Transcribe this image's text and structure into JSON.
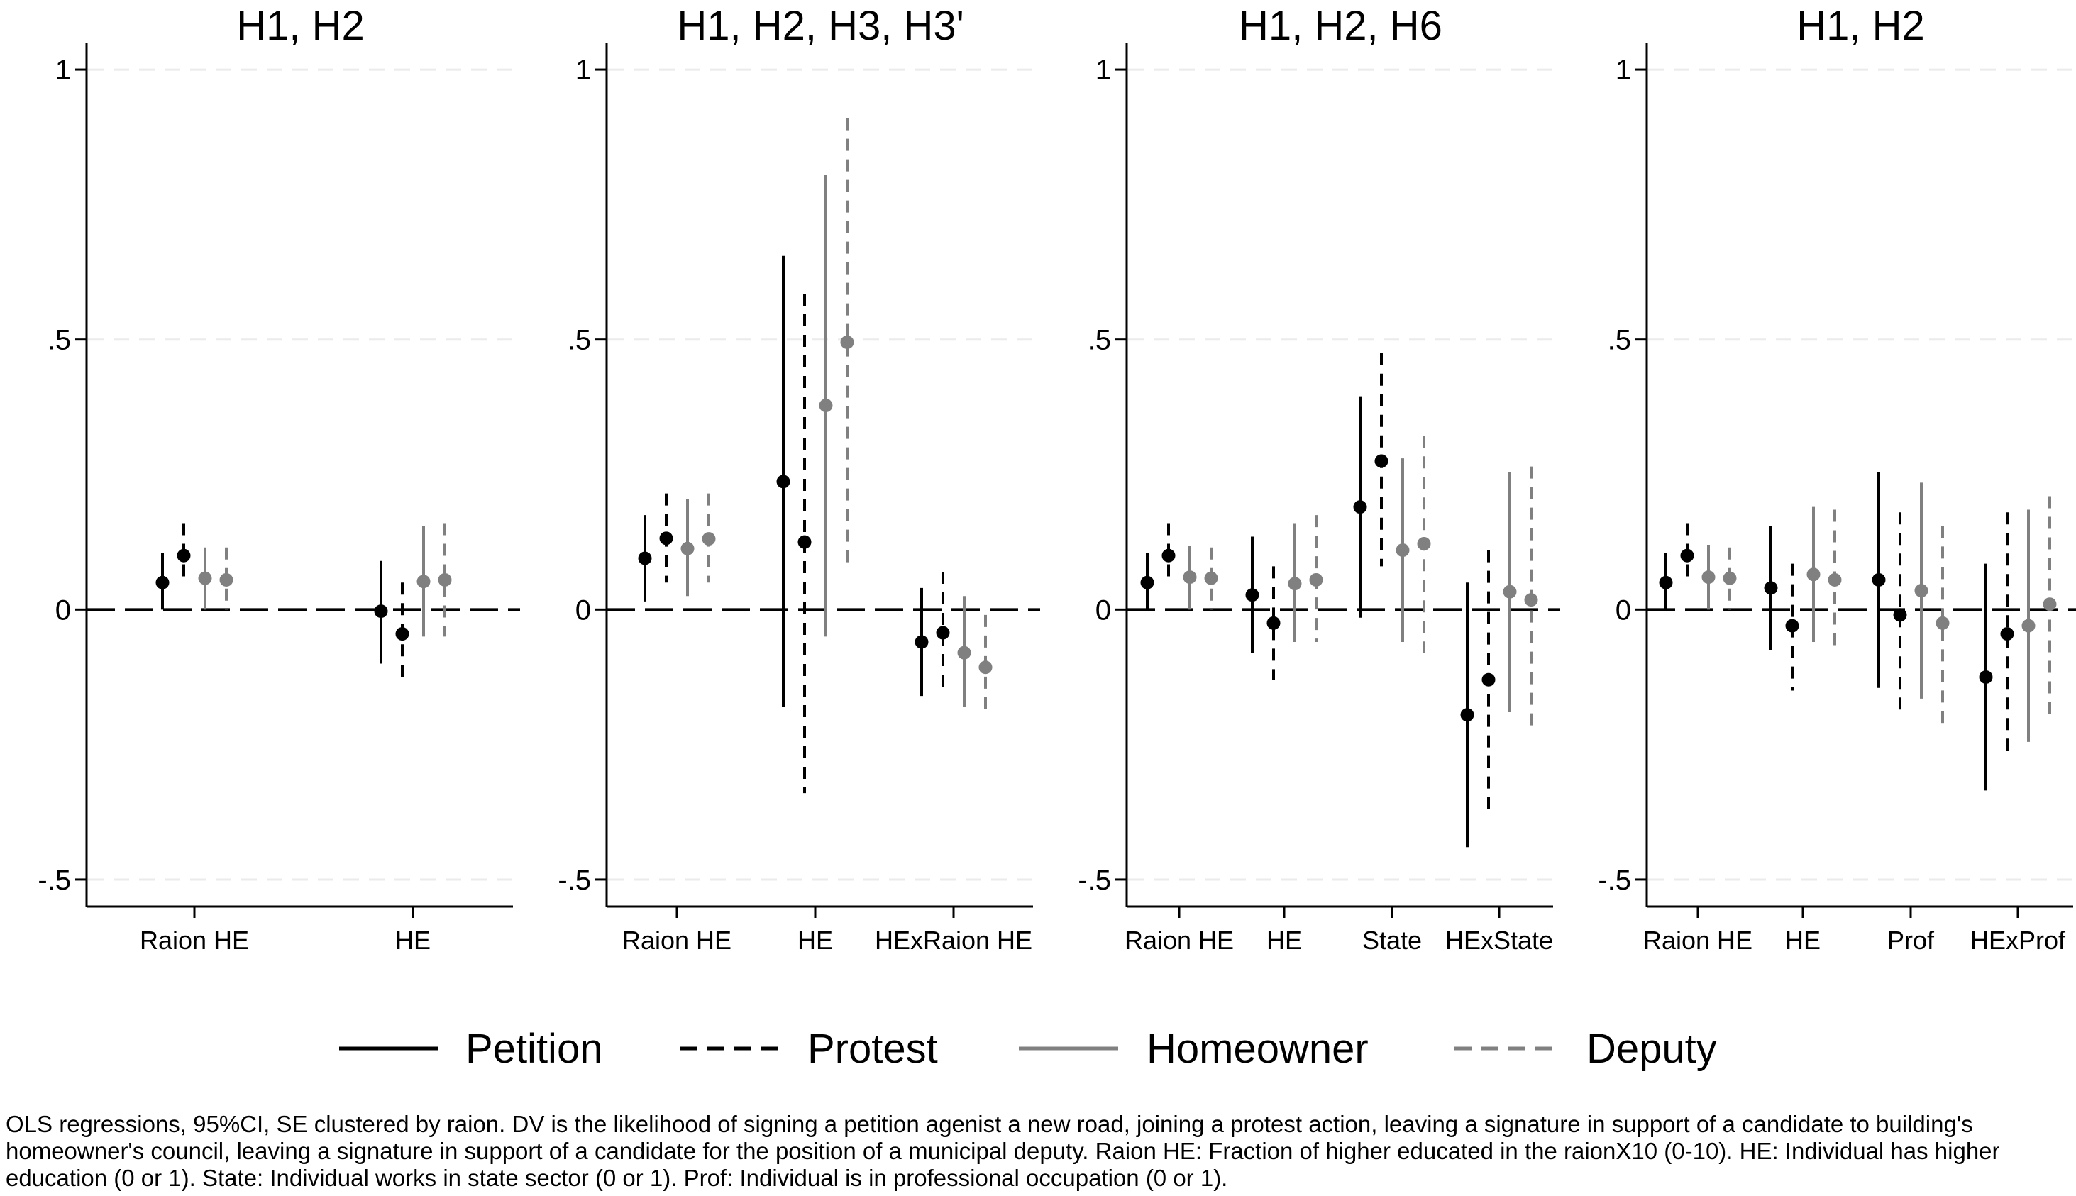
{
  "chart_data": [
    {
      "type": "coefficient-plot",
      "title": "H1, H2",
      "ylim": [
        -0.55,
        1.05
      ],
      "yticks": [
        {
          "value": 1,
          "label": "1"
        },
        {
          "value": 0.5,
          "label": ".5"
        },
        {
          "value": 0,
          "label": "0"
        },
        {
          "value": -0.5,
          "label": "-.5"
        }
      ],
      "categories": [
        "Raion HE",
        "HE"
      ],
      "series": [
        {
          "name": "Petition",
          "estimates": [
            0.05,
            -0.003
          ],
          "ci_low": [
            0.0,
            -0.1
          ],
          "ci_high": [
            0.105,
            0.09
          ]
        },
        {
          "name": "Protest",
          "estimates": [
            0.1,
            -0.045
          ],
          "ci_low": [
            0.045,
            -0.14
          ],
          "ci_high": [
            0.16,
            0.05
          ]
        },
        {
          "name": "Homeowner",
          "estimates": [
            0.058,
            0.052
          ],
          "ci_low": [
            0.0,
            -0.05
          ],
          "ci_high": [
            0.115,
            0.155
          ]
        },
        {
          "name": "Deputy",
          "estimates": [
            0.055,
            0.055
          ],
          "ci_low": [
            0.0,
            -0.05
          ],
          "ci_high": [
            0.115,
            0.16
          ]
        }
      ]
    },
    {
      "type": "coefficient-plot",
      "title": "H1, H2, H3, H3'",
      "ylim": [
        -0.55,
        1.05
      ],
      "yticks": [
        {
          "value": 1,
          "label": "1"
        },
        {
          "value": 0.5,
          "label": ".5"
        },
        {
          "value": 0,
          "label": "0"
        },
        {
          "value": -0.5,
          "label": "-.5"
        }
      ],
      "categories": [
        "Raion HE",
        "HE",
        "HExRaion HE"
      ],
      "series": [
        {
          "name": "Petition",
          "estimates": [
            0.095,
            0.237,
            -0.06
          ],
          "ci_low": [
            0.015,
            -0.18,
            -0.16
          ],
          "ci_high": [
            0.175,
            0.655,
            0.04
          ]
        },
        {
          "name": "Protest",
          "estimates": [
            0.132,
            0.125,
            -0.043
          ],
          "ci_low": [
            0.05,
            -0.34,
            -0.15
          ],
          "ci_high": [
            0.215,
            0.585,
            0.07
          ]
        },
        {
          "name": "Homeowner",
          "estimates": [
            0.113,
            0.378,
            -0.08
          ],
          "ci_low": [
            0.025,
            -0.05,
            -0.18
          ],
          "ci_high": [
            0.205,
            0.805,
            0.025
          ]
        },
        {
          "name": "Deputy",
          "estimates": [
            0.131,
            0.495,
            -0.107
          ],
          "ci_low": [
            0.05,
            0.075,
            -0.2
          ],
          "ci_high": [
            0.215,
            0.91,
            -0.01
          ]
        }
      ]
    },
    {
      "type": "coefficient-plot",
      "title": "H1, H2, H6",
      "ylim": [
        -0.55,
        1.05
      ],
      "yticks": [
        {
          "value": 1,
          "label": "1"
        },
        {
          "value": 0.5,
          "label": ".5"
        },
        {
          "value": 0,
          "label": "0"
        },
        {
          "value": -0.5,
          "label": "-.5"
        }
      ],
      "categories": [
        "Raion HE",
        "HE",
        "State",
        "HExState"
      ],
      "series": [
        {
          "name": "Petition",
          "estimates": [
            0.05,
            0.027,
            0.19,
            -0.195
          ],
          "ci_low": [
            0.0,
            -0.08,
            -0.015,
            -0.44
          ],
          "ci_high": [
            0.105,
            0.135,
            0.395,
            0.05
          ]
        },
        {
          "name": "Protest",
          "estimates": [
            0.1,
            -0.025,
            0.275,
            -0.13
          ],
          "ci_low": [
            0.045,
            -0.13,
            0.08,
            -0.37
          ],
          "ci_high": [
            0.16,
            0.08,
            0.475,
            0.11
          ]
        },
        {
          "name": "Homeowner",
          "estimates": [
            0.06,
            0.048,
            0.11,
            0.033
          ],
          "ci_low": [
            0.0,
            -0.06,
            -0.06,
            -0.19
          ],
          "ci_high": [
            0.118,
            0.16,
            0.28,
            0.255
          ]
        },
        {
          "name": "Deputy",
          "estimates": [
            0.058,
            0.055,
            0.122,
            0.018
          ],
          "ci_low": [
            0.0,
            -0.06,
            -0.08,
            -0.23
          ],
          "ci_high": [
            0.115,
            0.175,
            0.322,
            0.265
          ]
        }
      ]
    },
    {
      "type": "coefficient-plot",
      "title": "H1, H2",
      "ylim": [
        -0.55,
        1.05
      ],
      "yticks": [
        {
          "value": 1,
          "label": "1"
        },
        {
          "value": 0.5,
          "label": ".5"
        },
        {
          "value": 0,
          "label": "0"
        },
        {
          "value": -0.5,
          "label": "-.5"
        }
      ],
      "categories": [
        "Raion HE",
        "HE",
        "Prof",
        "HExProf"
      ],
      "series": [
        {
          "name": "Petition",
          "estimates": [
            0.05,
            0.04,
            0.055,
            -0.125
          ],
          "ci_low": [
            0.0,
            -0.075,
            -0.145,
            -0.335
          ],
          "ci_high": [
            0.105,
            0.155,
            0.255,
            0.085
          ]
        },
        {
          "name": "Protest",
          "estimates": [
            0.1,
            -0.03,
            -0.01,
            -0.045
          ],
          "ci_low": [
            0.045,
            -0.15,
            -0.2,
            -0.27
          ],
          "ci_high": [
            0.16,
            0.085,
            0.18,
            0.18
          ]
        },
        {
          "name": "Homeowner",
          "estimates": [
            0.06,
            0.065,
            0.035,
            -0.03
          ],
          "ci_low": [
            0.0,
            -0.06,
            -0.165,
            -0.245
          ],
          "ci_high": [
            0.12,
            0.19,
            0.235,
            0.185
          ]
        },
        {
          "name": "Deputy",
          "estimates": [
            0.058,
            0.055,
            -0.025,
            0.01
          ],
          "ci_low": [
            0.0,
            -0.075,
            -0.21,
            -0.2
          ],
          "ci_high": [
            0.115,
            0.185,
            0.155,
            0.21
          ]
        }
      ]
    }
  ],
  "legend": [
    {
      "label": "Petition",
      "color": "#000000",
      "dashed": false
    },
    {
      "label": "Protest",
      "color": "#000000",
      "dashed": true
    },
    {
      "label": "Homeowner",
      "color": "#808080",
      "dashed": false
    },
    {
      "label": "Deputy",
      "color": "#808080",
      "dashed": true
    }
  ],
  "colors": {
    "dark": "#000000",
    "gray": "#808080",
    "gridline": "#ebebeb"
  },
  "caption": "OLS regressions, 95%CI, SE clustered by raion. DV is the likelihood of signing a petition agenist a new road, joining a protest action, leaving a signature in support of a candidate to building's homeowner's council, leaving a signature in support of a candidate for the position of a municipal deputy. Raion HE: Fraction of higher educated in the raionX10 (0-10). HE: Individual has higher education (0 or 1). State: Individual works in state sector (0 or 1). Prof: Individual is in professional occupation (0 or 1)."
}
